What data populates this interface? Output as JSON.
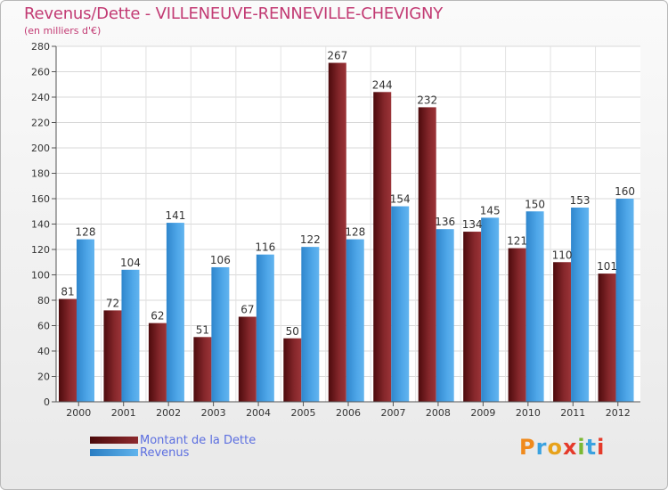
{
  "chart_data": {
    "type": "bar",
    "title": "Revenus/Dette - VILLENEUVE-RENNEVILLE-CHEVIGNY",
    "subtitle": "(en milliers d'€)",
    "categories": [
      "2000",
      "2001",
      "2002",
      "2003",
      "2004",
      "2005",
      "2006",
      "2007",
      "2008",
      "2009",
      "2010",
      "2011",
      "2012"
    ],
    "series": [
      {
        "name": "Montant de la Dette",
        "values": [
          81,
          72,
          62,
          51,
          67,
          50,
          267,
          244,
          232,
          134,
          121,
          110,
          101
        ],
        "color": "#7a2226"
      },
      {
        "name": "Revenus",
        "values": [
          128,
          104,
          141,
          106,
          116,
          122,
          128,
          154,
          136,
          145,
          150,
          153,
          160
        ],
        "color": "#4aa0e2"
      }
    ],
    "ylim": [
      0,
      280
    ],
    "yticks": [
      0,
      20,
      40,
      60,
      80,
      100,
      120,
      140,
      160,
      180,
      200,
      220,
      240,
      260,
      280
    ],
    "grid": true,
    "legend": "bottom-left"
  },
  "logo": {
    "text": "Proxiti"
  }
}
